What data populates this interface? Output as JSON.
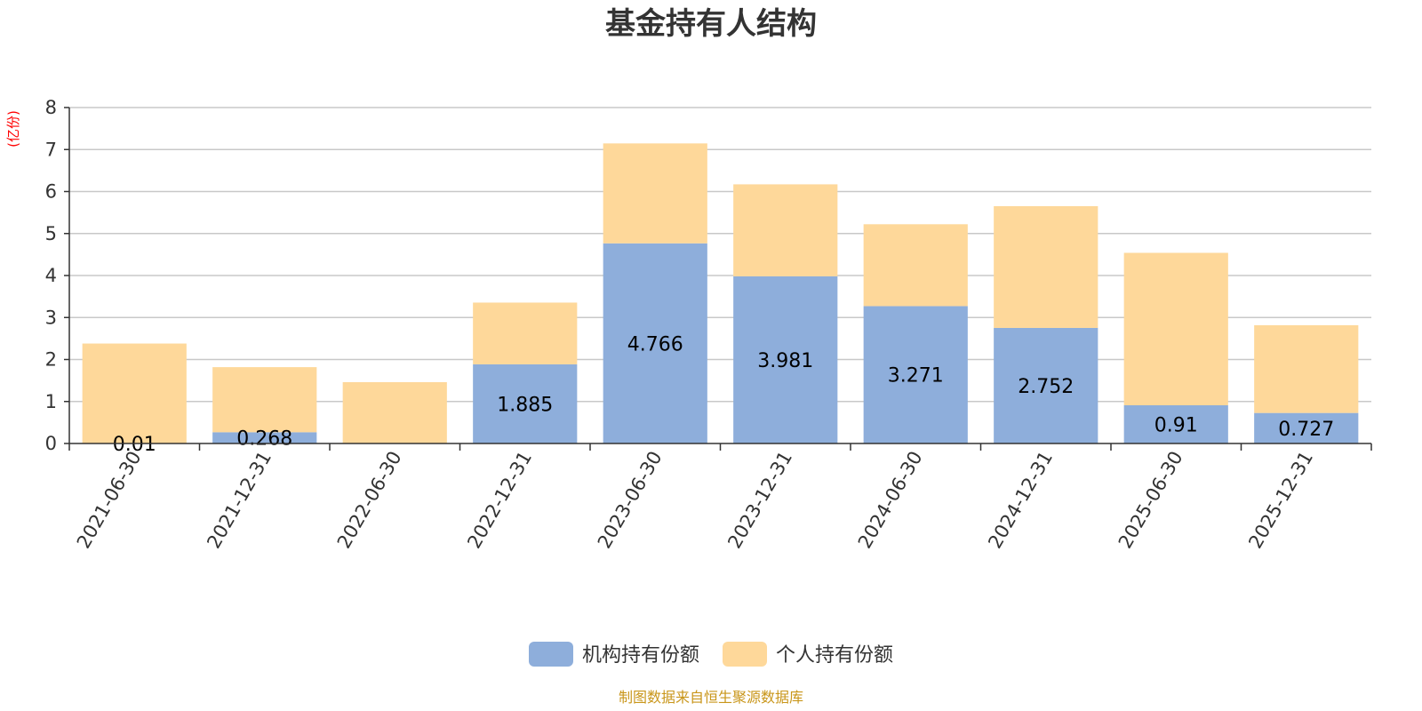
{
  "chart_data": {
    "type": "bar",
    "stacked": true,
    "title": "基金持有人结构",
    "unit_label": "(亿份)",
    "categories": [
      "2021-06-30",
      "2021-12-31",
      "2022-06-30",
      "2022-12-31",
      "2023-06-30",
      "2023-12-31",
      "2024-06-30",
      "2024-12-31",
      "2025-06-30",
      "2025-12-31"
    ],
    "series": [
      {
        "name": "机构持有份额",
        "color": "#8eaedb",
        "values": [
          0.01,
          0.268,
          0.0,
          1.885,
          4.766,
          3.981,
          3.271,
          2.752,
          0.91,
          0.727
        ],
        "labels": [
          "0.01",
          "0.268",
          "",
          "1.885",
          "4.766",
          "3.981",
          "3.271",
          "2.752",
          "0.91",
          "0.727"
        ]
      },
      {
        "name": "个人持有份额",
        "color": "#fed89a",
        "values": [
          2.37,
          1.55,
          1.46,
          1.47,
          2.38,
          2.19,
          1.95,
          2.9,
          3.63,
          2.09
        ]
      }
    ],
    "ylim": [
      0,
      8
    ],
    "yticks": [
      "0",
      "1",
      "2",
      "3",
      "4",
      "5",
      "6",
      "7",
      "8"
    ],
    "grid": true,
    "legend_position": "bottom-center",
    "source": "制图数据来自恒生聚源数据库"
  }
}
